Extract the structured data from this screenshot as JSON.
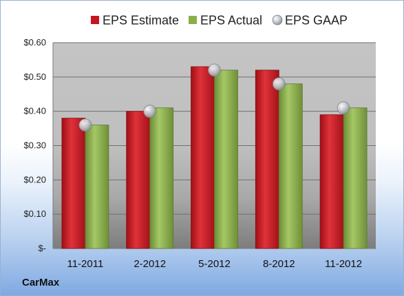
{
  "chart_data": {
    "type": "bar",
    "categories": [
      "11-2011",
      "2-2012",
      "5-2012",
      "8-2012",
      "11-2012"
    ],
    "series": [
      {
        "name": "EPS Estimate",
        "values": [
          0.38,
          0.4,
          0.53,
          0.52,
          0.39
        ],
        "color": "#c8141e"
      },
      {
        "name": "EPS Actual",
        "values": [
          0.36,
          0.41,
          0.52,
          0.48,
          0.41
        ],
        "color": "#8bb04a"
      },
      {
        "name": "EPS GAAP",
        "values": [
          0.36,
          0.4,
          0.52,
          0.48,
          0.41
        ],
        "color": "#b9bec6",
        "style": "marker"
      }
    ],
    "ylim": [
      0,
      0.6
    ],
    "yticks": [
      {
        "v": 0.0,
        "label": "$-"
      },
      {
        "v": 0.1,
        "label": "$0.10"
      },
      {
        "v": 0.2,
        "label": "$0.20"
      },
      {
        "v": 0.3,
        "label": "$0.30"
      },
      {
        "v": 0.4,
        "label": "$0.40"
      },
      {
        "v": 0.5,
        "label": "$0.50"
      },
      {
        "v": 0.6,
        "label": "$0.60"
      }
    ],
    "grid": true,
    "legend_position": "top"
  },
  "company": "CarMax"
}
